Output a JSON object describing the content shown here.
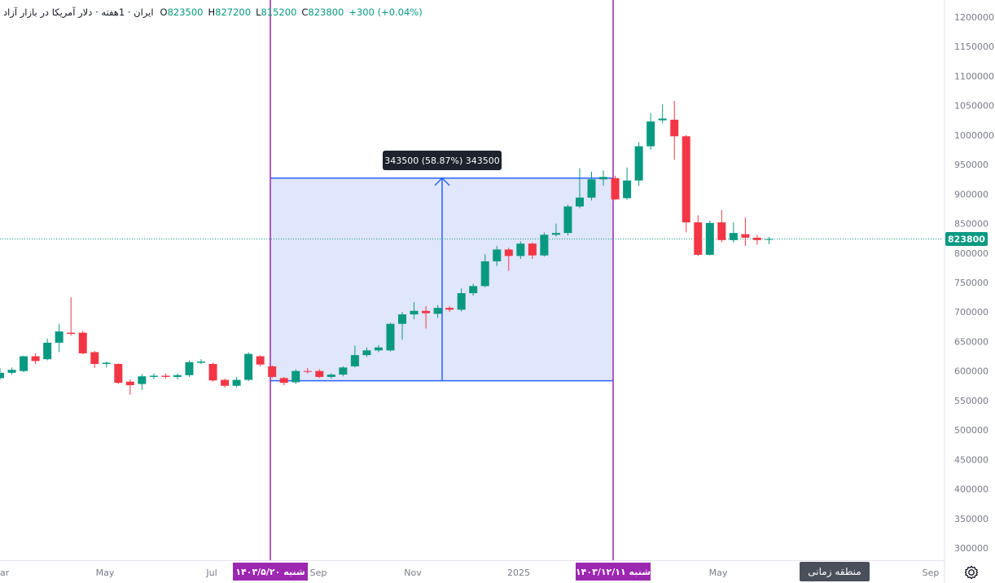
{
  "legend": {
    "title": "ایران · 1هفته · دلار آمریکا در بازار آزاد",
    "o_label": "O",
    "o": "823500",
    "h_label": "H",
    "h": "827200",
    "l_label": "L",
    "l": "815200",
    "c_label": "C",
    "c": "823800",
    "change": "+300 (+0.04%)"
  },
  "price_axis": {
    "ticks": [
      "1200000",
      "1150000",
      "1100000",
      "1050000",
      "1000000",
      "950000",
      "900000",
      "850000",
      "800000",
      "750000",
      "700000",
      "650000",
      "600000",
      "550000",
      "500000",
      "450000",
      "400000",
      "350000",
      "300000"
    ],
    "last_price_label": "823800"
  },
  "time_axis": {
    "labels": [
      "ar",
      "May",
      "Jul",
      "Sep",
      "Nov",
      "2025",
      "May",
      "Sep"
    ],
    "marker_left": "شنبه ۱۴۰۳/۵/۲۰",
    "marker_right": "شنبه ۱۴۰۳/۱۲/۱۱"
  },
  "measure": {
    "label": "343500 (58.87%) 343500"
  },
  "toolbar": {
    "timezone_button": "منطقه زمانی"
  },
  "colors": {
    "up": "#089981",
    "down": "#f23645",
    "range_line": "#2962ff",
    "marker": "#9c27b0",
    "range_fill": "#dde3fb"
  },
  "chart_data": {
    "type": "candlestick",
    "title": "ایران · 1هفته · دلار آمریکا در بازار آزاد",
    "ylim": [
      280000,
      1220000
    ],
    "last_price": 823800,
    "candles": [
      {
        "o": 588000,
        "h": 605000,
        "l": 585000,
        "c": 597000
      },
      {
        "o": 597000,
        "h": 606000,
        "l": 594000,
        "c": 602000
      },
      {
        "o": 600000,
        "h": 626000,
        "l": 598000,
        "c": 625000
      },
      {
        "o": 625000,
        "h": 630000,
        "l": 612000,
        "c": 617000
      },
      {
        "o": 620000,
        "h": 655000,
        "l": 618000,
        "c": 648000
      },
      {
        "o": 648000,
        "h": 680000,
        "l": 632000,
        "c": 667000
      },
      {
        "o": 665000,
        "h": 725000,
        "l": 660000,
        "c": 663000
      },
      {
        "o": 665000,
        "h": 668000,
        "l": 628000,
        "c": 630000
      },
      {
        "o": 632000,
        "h": 634000,
        "l": 605000,
        "c": 612000
      },
      {
        "o": 612000,
        "h": 616000,
        "l": 606000,
        "c": 614000
      },
      {
        "o": 612000,
        "h": 613000,
        "l": 578000,
        "c": 580000
      },
      {
        "o": 582000,
        "h": 586000,
        "l": 560000,
        "c": 576000
      },
      {
        "o": 578000,
        "h": 595000,
        "l": 568000,
        "c": 591000
      },
      {
        "o": 590000,
        "h": 596000,
        "l": 586000,
        "c": 592000
      },
      {
        "o": 592000,
        "h": 596000,
        "l": 587000,
        "c": 590000
      },
      {
        "o": 590000,
        "h": 596000,
        "l": 586000,
        "c": 593000
      },
      {
        "o": 593000,
        "h": 618000,
        "l": 590000,
        "c": 615000
      },
      {
        "o": 614000,
        "h": 620000,
        "l": 612000,
        "c": 616000
      },
      {
        "o": 612000,
        "h": 614000,
        "l": 582000,
        "c": 584000
      },
      {
        "o": 585000,
        "h": 587000,
        "l": 572000,
        "c": 575000
      },
      {
        "o": 575000,
        "h": 590000,
        "l": 572000,
        "c": 585000
      },
      {
        "o": 585000,
        "h": 632000,
        "l": 583000,
        "c": 629000
      },
      {
        "o": 625000,
        "h": 627000,
        "l": 608000,
        "c": 611000
      },
      {
        "o": 608000,
        "h": 609000,
        "l": 588000,
        "c": 590000
      },
      {
        "o": 588000,
        "h": 590000,
        "l": 576000,
        "c": 580000
      },
      {
        "o": 581000,
        "h": 603000,
        "l": 578000,
        "c": 600000
      },
      {
        "o": 600000,
        "h": 605000,
        "l": 596000,
        "c": 599000
      },
      {
        "o": 600000,
        "h": 603000,
        "l": 588000,
        "c": 590000
      },
      {
        "o": 590000,
        "h": 596000,
        "l": 587000,
        "c": 594000
      },
      {
        "o": 594000,
        "h": 608000,
        "l": 591000,
        "c": 606000
      },
      {
        "o": 608000,
        "h": 643000,
        "l": 606000,
        "c": 627000
      },
      {
        "o": 627000,
        "h": 640000,
        "l": 624000,
        "c": 635000
      },
      {
        "o": 635000,
        "h": 644000,
        "l": 632000,
        "c": 640000
      },
      {
        "o": 635000,
        "h": 682000,
        "l": 633000,
        "c": 680000
      },
      {
        "o": 680000,
        "h": 700000,
        "l": 653000,
        "c": 696000
      },
      {
        "o": 696000,
        "h": 717000,
        "l": 688000,
        "c": 702000
      },
      {
        "o": 702000,
        "h": 710000,
        "l": 672000,
        "c": 698000
      },
      {
        "o": 697000,
        "h": 712000,
        "l": 690000,
        "c": 707000
      },
      {
        "o": 707000,
        "h": 710000,
        "l": 700000,
        "c": 704000
      },
      {
        "o": 704000,
        "h": 740000,
        "l": 701000,
        "c": 732000
      },
      {
        "o": 732000,
        "h": 748000,
        "l": 728000,
        "c": 744000
      },
      {
        "o": 744000,
        "h": 798000,
        "l": 742000,
        "c": 786000
      },
      {
        "o": 786000,
        "h": 812000,
        "l": 778000,
        "c": 806000
      },
      {
        "o": 806000,
        "h": 809000,
        "l": 770000,
        "c": 795000
      },
      {
        "o": 795000,
        "h": 820000,
        "l": 790000,
        "c": 816000
      },
      {
        "o": 816000,
        "h": 818000,
        "l": 790000,
        "c": 796000
      },
      {
        "o": 796000,
        "h": 835000,
        "l": 794000,
        "c": 831000
      },
      {
        "o": 831000,
        "h": 850000,
        "l": 828000,
        "c": 834000
      },
      {
        "o": 834000,
        "h": 882000,
        "l": 830000,
        "c": 879000
      },
      {
        "o": 879000,
        "h": 944000,
        "l": 876000,
        "c": 894000
      },
      {
        "o": 894000,
        "h": 938000,
        "l": 889000,
        "c": 925000
      },
      {
        "o": 925000,
        "h": 940000,
        "l": 914000,
        "c": 929000
      },
      {
        "o": 927000,
        "h": 931000,
        "l": 890000,
        "c": 891000
      },
      {
        "o": 893000,
        "h": 945000,
        "l": 890000,
        "c": 923000
      },
      {
        "o": 923000,
        "h": 988000,
        "l": 914000,
        "c": 981000
      },
      {
        "o": 981000,
        "h": 1037000,
        "l": 975000,
        "c": 1023000
      },
      {
        "o": 1025000,
        "h": 1052000,
        "l": 1020000,
        "c": 1028000
      },
      {
        "o": 1026000,
        "h": 1058000,
        "l": 958000,
        "c": 998000
      },
      {
        "o": 998000,
        "h": 1000000,
        "l": 835000,
        "c": 852000
      },
      {
        "o": 852000,
        "h": 864000,
        "l": 795000,
        "c": 797000
      },
      {
        "o": 797000,
        "h": 855000,
        "l": 796000,
        "c": 851000
      },
      {
        "o": 852000,
        "h": 873000,
        "l": 818000,
        "c": 822000
      },
      {
        "o": 822000,
        "h": 852000,
        "l": 818000,
        "c": 834000
      },
      {
        "o": 832000,
        "h": 860000,
        "l": 812000,
        "c": 826000
      },
      {
        "o": 826000,
        "h": 831000,
        "l": 814000,
        "c": 822000
      },
      {
        "o": 823500,
        "h": 827200,
        "l": 815200,
        "c": 823800
      }
    ],
    "range_measure": {
      "from_candle": 23,
      "to_candle": 52,
      "low": 583500,
      "high": 927000,
      "change": 343500,
      "percent": 58.87
    }
  }
}
